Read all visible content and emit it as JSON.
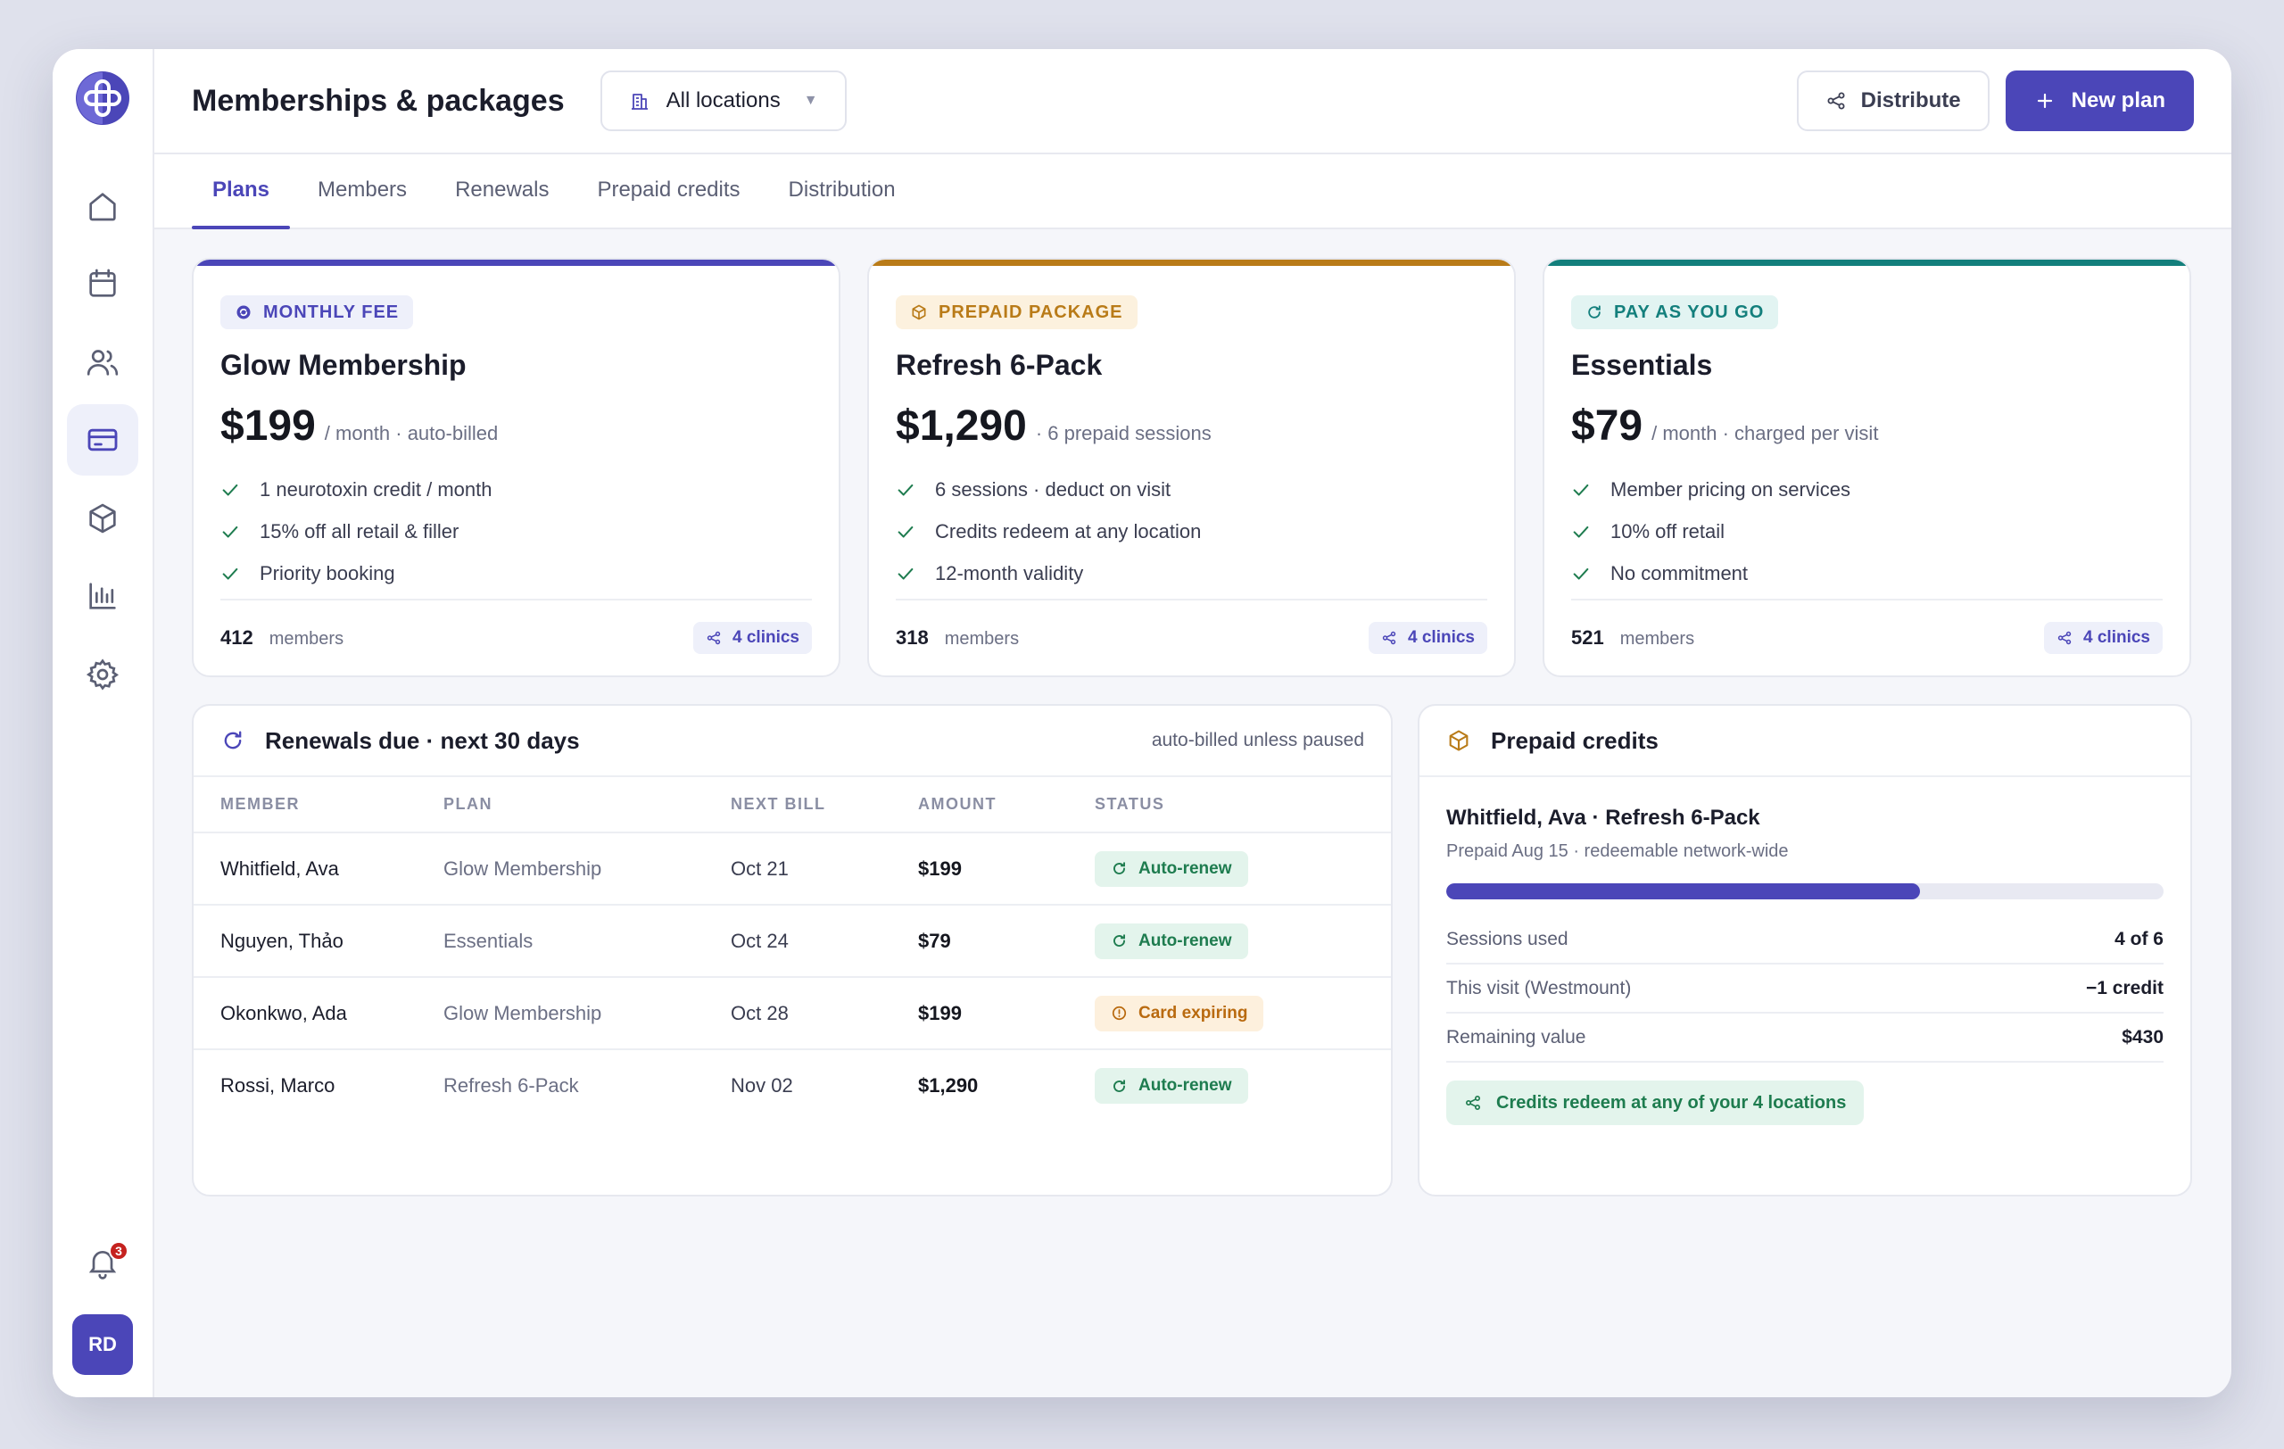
{
  "colors": {
    "accent": "#4b46b8",
    "amber": "#b97b18",
    "teal": "#137f7c",
    "success": "#1e7c4f",
    "warning": "#b96a0f"
  },
  "sidebar": {
    "items": [
      {
        "icon": "home-icon",
        "active": false
      },
      {
        "icon": "calendar-icon",
        "active": false
      },
      {
        "icon": "users-icon",
        "active": false
      },
      {
        "icon": "credit-card-icon",
        "active": true
      },
      {
        "icon": "package-icon",
        "active": false
      },
      {
        "icon": "bar-chart-icon",
        "active": false
      },
      {
        "icon": "gear-icon",
        "active": false
      }
    ],
    "notifications": "3",
    "avatar_initials": "RD"
  },
  "header": {
    "title": "Memberships & packages",
    "location_select": "All locations",
    "distribute_label": "Distribute",
    "new_plan_label": "New plan"
  },
  "tabs": [
    {
      "label": "Plans",
      "active": true
    },
    {
      "label": "Members",
      "active": false
    },
    {
      "label": "Renewals",
      "active": false
    },
    {
      "label": "Prepaid credits",
      "active": false
    },
    {
      "label": "Distribution",
      "active": false
    }
  ],
  "plans": [
    {
      "badge": "MONTHLY FEE",
      "name": "Glow Membership",
      "price": "$199",
      "price_note": "/ month · auto-billed",
      "features": [
        "1 neurotoxin credit / month",
        "15% off all retail & filler",
        "Priority booking"
      ],
      "members": "412",
      "members_label": "members",
      "clinics": "4 clinics"
    },
    {
      "badge": "PREPAID PACKAGE",
      "name": "Refresh 6-Pack",
      "price": "$1,290",
      "price_note": "· 6 prepaid sessions",
      "features": [
        "6 sessions · deduct on visit",
        "Credits redeem at any location",
        "12-month validity"
      ],
      "members": "318",
      "members_label": "members",
      "clinics": "4 clinics"
    },
    {
      "badge": "PAY AS YOU GO",
      "name": "Essentials",
      "price": "$79",
      "price_note": "/ month · charged per visit",
      "features": [
        "Member pricing on services",
        "10% off retail",
        "No commitment"
      ],
      "members": "521",
      "members_label": "members",
      "clinics": "4 clinics"
    }
  ],
  "renewals": {
    "title": "Renewals due · next 30 days",
    "note": "auto-billed unless paused",
    "columns": [
      "MEMBER",
      "PLAN",
      "NEXT BILL",
      "AMOUNT",
      "STATUS"
    ],
    "rows": [
      {
        "member": "Whitfield, Ava",
        "plan": "Glow Membership",
        "next_bill": "Oct 21",
        "amount": "$199",
        "status": "Auto-renew"
      },
      {
        "member": "Nguyen, Thảo",
        "plan": "Essentials",
        "next_bill": "Oct 24",
        "amount": "$79",
        "status": "Auto-renew"
      },
      {
        "member": "Okonkwo, Ada",
        "plan": "Glow Membership",
        "next_bill": "Oct 28",
        "amount": "$199",
        "status": "Card expiring"
      },
      {
        "member": "Rossi, Marco",
        "plan": "Refresh 6-Pack",
        "next_bill": "Nov 02",
        "amount": "$1,290",
        "status": "Auto-renew"
      }
    ]
  },
  "credits": {
    "title": "Prepaid credits",
    "holder": "Whitfield, Ava · Refresh 6-Pack",
    "sub": "Prepaid Aug 15 · redeemable network-wide",
    "progress_fraction": 0.66,
    "rows": [
      {
        "label": "Sessions used",
        "value": "4 of 6"
      },
      {
        "label": "This visit (Westmount)",
        "value": "−1 credit"
      },
      {
        "label": "Remaining value",
        "value": "$430"
      }
    ],
    "network_note": "Credits redeem at any of your 4 locations"
  }
}
